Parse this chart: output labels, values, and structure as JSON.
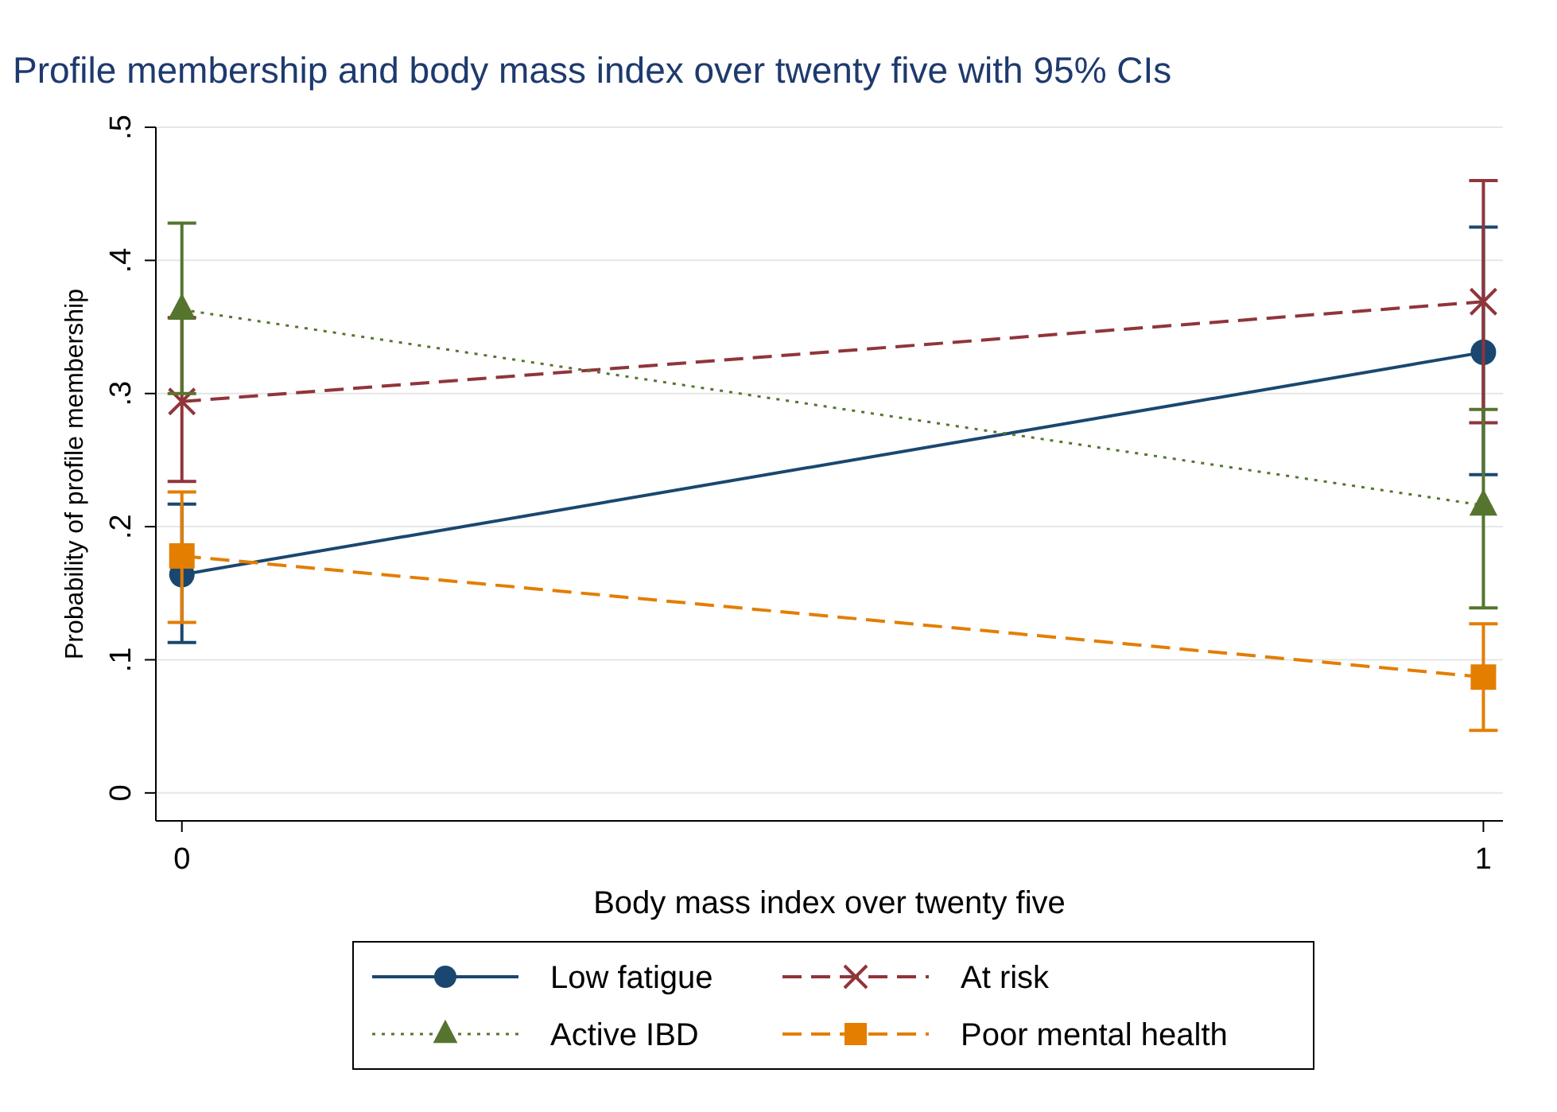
{
  "chart_data": {
    "type": "line",
    "title": "Profile membership and body mass index over twenty five with 95% CIs",
    "xlabel": "Body mass index over twenty five",
    "ylabel": "Probability of profile membership",
    "x": [
      0,
      1
    ],
    "xlim": [
      -0.02,
      1.015
    ],
    "xticks": [
      0,
      1
    ],
    "ylim": [
      -0.021,
      0.5
    ],
    "yticks": [
      {
        "value": 0,
        "label": "0"
      },
      {
        "value": 0.1,
        "label": ".1"
      },
      {
        "value": 0.2,
        "label": ".2"
      },
      {
        "value": 0.3,
        "label": ".3"
      },
      {
        "value": 0.4,
        "label": ".4"
      },
      {
        "value": 0.5,
        "label": ".5"
      }
    ],
    "grid": "y",
    "legend": "bottom",
    "series": [
      {
        "name": "Low fatigue",
        "color": "#1a476f",
        "values": [
          0.164,
          0.331
        ],
        "errors": [
          [
            0.113,
            0.217
          ],
          [
            0.239,
            0.425
          ]
        ],
        "marker": "circle",
        "line_style": "solid"
      },
      {
        "name": "At risk",
        "color": "#90353b",
        "values": [
          0.294,
          0.369
        ],
        "errors": [
          [
            0.234,
            0.357
          ],
          [
            0.278,
            0.46
          ]
        ],
        "marker": "cross",
        "line_style": "dashed"
      },
      {
        "name": "Active IBD",
        "color": "#55752f",
        "values": [
          0.363,
          0.216
        ],
        "errors": [
          [
            0.3,
            0.428
          ],
          [
            0.139,
            0.288
          ]
        ],
        "marker": "triangle",
        "line_style": "dotted"
      },
      {
        "name": "Poor mental health",
        "color": "#e37e00",
        "values": [
          0.178,
          0.087
        ],
        "errors": [
          [
            0.128,
            0.226
          ],
          [
            0.047,
            0.127
          ]
        ],
        "marker": "square",
        "line_style": "dashed"
      }
    ]
  }
}
